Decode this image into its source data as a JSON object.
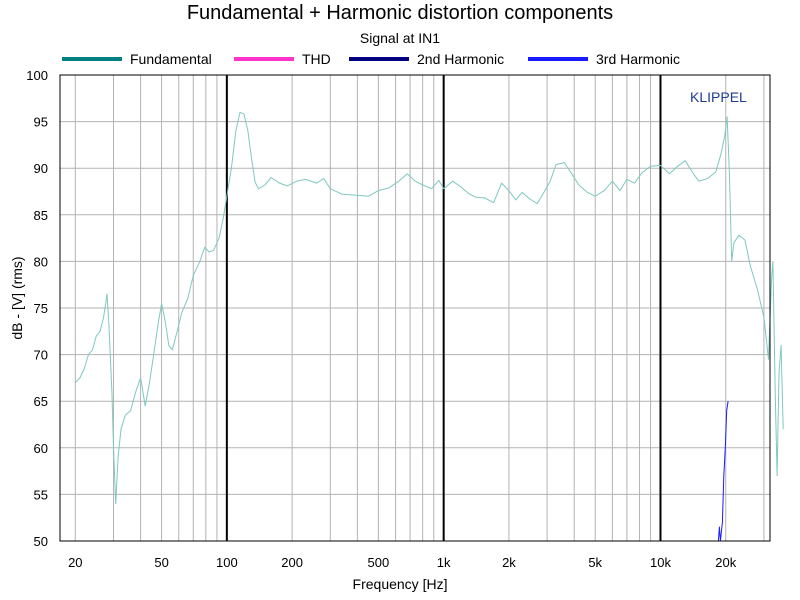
{
  "chart_data": {
    "type": "line",
    "title": "Fundamental + Harmonic distortion components",
    "subtitle": "Signal at IN1",
    "xlabel": "Frequency [Hz]",
    "ylabel": "dB - [V]  (rms)",
    "x_scale": "log",
    "xlim": [
      17,
      32000
    ],
    "ylim": [
      50,
      100
    ],
    "x_ticks": [
      {
        "value": 20,
        "label": "20"
      },
      {
        "value": 50,
        "label": "50"
      },
      {
        "value": 100,
        "label": "100"
      },
      {
        "value": 200,
        "label": "200"
      },
      {
        "value": 500,
        "label": "500"
      },
      {
        "value": 1000,
        "label": "1k"
      },
      {
        "value": 2000,
        "label": "2k"
      },
      {
        "value": 5000,
        "label": "5k"
      },
      {
        "value": 10000,
        "label": "10k"
      },
      {
        "value": 20000,
        "label": "20k"
      }
    ],
    "y_ticks": [
      {
        "value": 50,
        "label": "50"
      },
      {
        "value": 55,
        "label": "55"
      },
      {
        "value": 60,
        "label": "60"
      },
      {
        "value": 65,
        "label": "65"
      },
      {
        "value": 70,
        "label": "70"
      },
      {
        "value": 75,
        "label": "75"
      },
      {
        "value": 80,
        "label": "80"
      },
      {
        "value": 85,
        "label": "85"
      },
      {
        "value": 90,
        "label": "90"
      },
      {
        "value": 95,
        "label": "95"
      },
      {
        "value": 100,
        "label": "100"
      }
    ],
    "grid": true,
    "decade_lines": [
      100,
      1000,
      10000
    ],
    "legend_position": "top",
    "annotation": "KLIPPEL",
    "series": [
      {
        "name": "Fundamental",
        "color": "#7fc8c0",
        "legend_color": "#008080",
        "points": [
          [
            20,
            67
          ],
          [
            21,
            67.5
          ],
          [
            22,
            68.5
          ],
          [
            23,
            70
          ],
          [
            24,
            70.5
          ],
          [
            25,
            72
          ],
          [
            26,
            72.5
          ],
          [
            27,
            74
          ],
          [
            28,
            76.5
          ],
          [
            28.6,
            73
          ],
          [
            29.5,
            66
          ],
          [
            30,
            60
          ],
          [
            30.7,
            54
          ],
          [
            31.5,
            59
          ],
          [
            32.5,
            62
          ],
          [
            34,
            63.5
          ],
          [
            36,
            64
          ],
          [
            38,
            66
          ],
          [
            40,
            67.5
          ],
          [
            42,
            64.5
          ],
          [
            44,
            67
          ],
          [
            46,
            70
          ],
          [
            48,
            73
          ],
          [
            50,
            75.5
          ],
          [
            52,
            73.5
          ],
          [
            54,
            71
          ],
          [
            56,
            70.5
          ],
          [
            59,
            72.5
          ],
          [
            62,
            74.5
          ],
          [
            66,
            76
          ],
          [
            70,
            78.5
          ],
          [
            75,
            80
          ],
          [
            79,
            81.5
          ],
          [
            83,
            81
          ],
          [
            87,
            81.2
          ],
          [
            92,
            82.5
          ],
          [
            96,
            84.5
          ],
          [
            100,
            87
          ],
          [
            105,
            90
          ],
          [
            110,
            94
          ],
          [
            115,
            96
          ],
          [
            120,
            95.8
          ],
          [
            125,
            94
          ],
          [
            130,
            91
          ],
          [
            135,
            88.5
          ],
          [
            140,
            87.8
          ],
          [
            150,
            88.2
          ],
          [
            160,
            89
          ],
          [
            175,
            88.4
          ],
          [
            190,
            88.1
          ],
          [
            210,
            88.6
          ],
          [
            230,
            88.8
          ],
          [
            260,
            88.4
          ],
          [
            280,
            88.9
          ],
          [
            300,
            87.8
          ],
          [
            340,
            87.2
          ],
          [
            400,
            87.1
          ],
          [
            450,
            87.0
          ],
          [
            500,
            87.6
          ],
          [
            560,
            87.9
          ],
          [
            620,
            88.6
          ],
          [
            680,
            89.4
          ],
          [
            740,
            88.6
          ],
          [
            800,
            88.2
          ],
          [
            880,
            87.8
          ],
          [
            950,
            88.7
          ],
          [
            1000,
            87.8
          ],
          [
            1100,
            88.6
          ],
          [
            1200,
            88.0
          ],
          [
            1300,
            87.3
          ],
          [
            1400,
            86.9
          ],
          [
            1550,
            86.8
          ],
          [
            1700,
            86.3
          ],
          [
            1850,
            88.4
          ],
          [
            2000,
            87.6
          ],
          [
            2150,
            86.6
          ],
          [
            2300,
            87.4
          ],
          [
            2500,
            86.7
          ],
          [
            2700,
            86.2
          ],
          [
            2900,
            87.4
          ],
          [
            3100,
            88.6
          ],
          [
            3300,
            90.4
          ],
          [
            3600,
            90.6
          ],
          [
            3900,
            89.4
          ],
          [
            4200,
            88.2
          ],
          [
            4600,
            87.4
          ],
          [
            5000,
            87.0
          ],
          [
            5500,
            87.6
          ],
          [
            6000,
            88.6
          ],
          [
            6500,
            87.6
          ],
          [
            7000,
            88.8
          ],
          [
            7600,
            88.4
          ],
          [
            8200,
            89.5
          ],
          [
            9000,
            90.2
          ],
          [
            10000,
            90.3
          ],
          [
            11000,
            89.4
          ],
          [
            12000,
            90.2
          ],
          [
            13000,
            90.8
          ],
          [
            14000,
            89.6
          ],
          [
            15000,
            88.6
          ],
          [
            16500,
            88.9
          ],
          [
            18000,
            89.6
          ],
          [
            19000,
            91.5
          ],
          [
            19800,
            93.5
          ],
          [
            20300,
            95.5
          ],
          [
            20800,
            89.5
          ],
          [
            21300,
            80
          ],
          [
            21800,
            82
          ],
          [
            23000,
            82.8
          ],
          [
            24500,
            82.3
          ],
          [
            26000,
            79.5
          ],
          [
            28000,
            77
          ],
          [
            30000,
            74
          ],
          [
            31500,
            69.5
          ],
          [
            32500,
            78
          ],
          [
            33000,
            80
          ],
          [
            33800,
            66
          ],
          [
            34500,
            57
          ],
          [
            35200,
            68
          ],
          [
            36000,
            71
          ],
          [
            36800,
            62
          ]
        ]
      },
      {
        "name": "THD",
        "color": "#ff33cc",
        "legend_color": "#ff33cc",
        "points": []
      },
      {
        "name": "2nd Harmonic",
        "color": "#000080",
        "legend_color": "#000080",
        "points": []
      },
      {
        "name": "3rd Harmonic",
        "color": "#1a1aff",
        "legend_color": "#1a1aff",
        "points": [
          [
            18500,
            50
          ],
          [
            18700,
            51.5
          ],
          [
            18900,
            50
          ],
          [
            19300,
            52
          ],
          [
            19600,
            57
          ],
          [
            19900,
            60
          ],
          [
            20200,
            64
          ],
          [
            20500,
            65
          ]
        ]
      }
    ]
  }
}
